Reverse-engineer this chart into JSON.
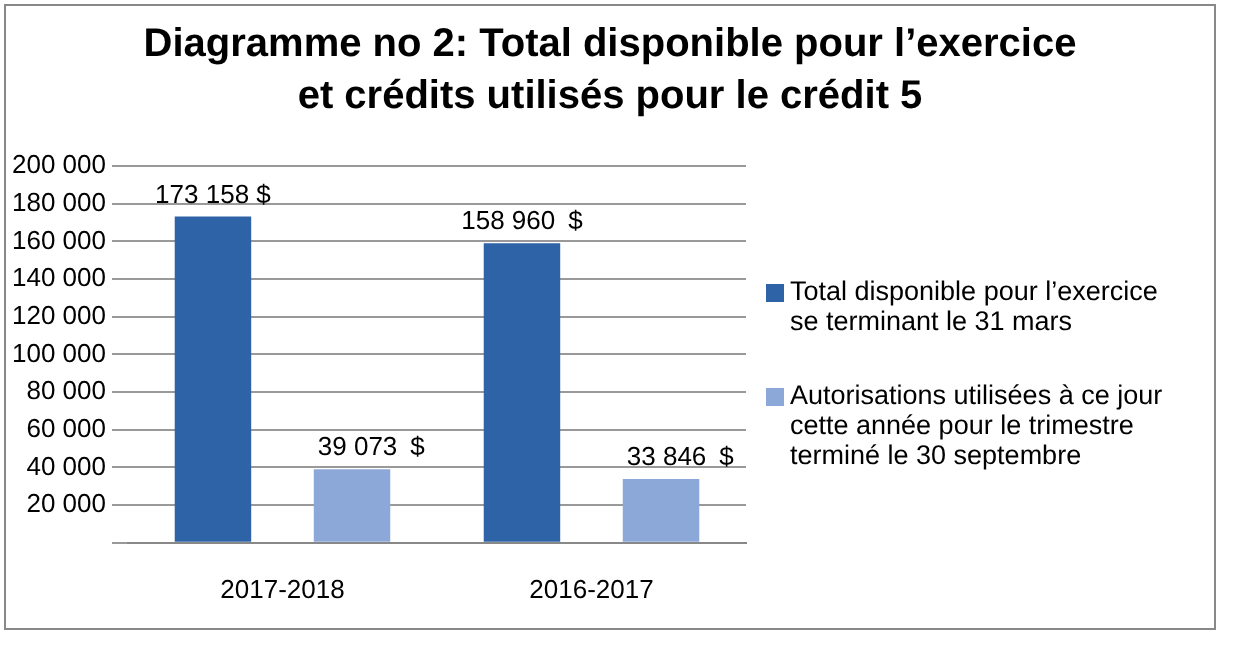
{
  "chart_data": {
    "type": "bar",
    "title": "Diagramme no 2: Total disponible pour l’exercice et crédits utilisés pour le crédit 5",
    "categories": [
      "2017-2018",
      "2016-2017"
    ],
    "series": [
      {
        "name": "Total disponible pour l’exercice se terminant le 31 mars",
        "color": "#2f63a8",
        "values": [
          173158,
          158960
        ],
        "value_labels": [
          "173 158 $",
          "158 960  $"
        ]
      },
      {
        "name": "Autorisations utilisées à ce jour cette année pour le trimestre terminé le 30 septembre",
        "color": "#8ca8d8",
        "values": [
          39073,
          33846
        ],
        "value_labels": [
          "39 073   $",
          "33 846  $"
        ]
      }
    ],
    "ylim": [
      0,
      200000
    ],
    "yticks": [
      {
        "value": 0,
        "label": null
      },
      "20 000",
      "40 000",
      "60 000",
      "80 000",
      "100 000",
      "120 000",
      "140 000",
      "160 000",
      "180 000",
      "200 000"
    ],
    "grid": "y",
    "legend": "right"
  }
}
